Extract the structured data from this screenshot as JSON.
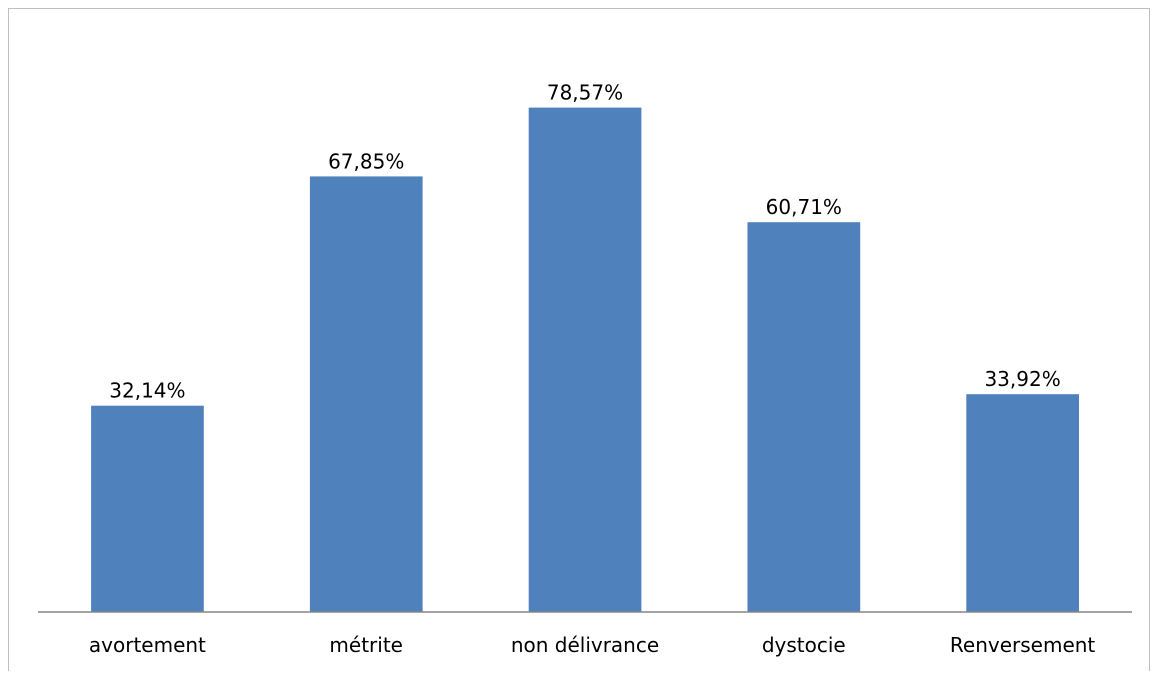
{
  "chart_data": {
    "type": "bar",
    "categories": [
      "avortement",
      "métrite",
      "non délivrance",
      "dystocie",
      "Renversement"
    ],
    "values": [
      32.14,
      67.85,
      78.57,
      60.71,
      33.92
    ],
    "value_labels": [
      "32,14%",
      "67,85%",
      "78,57%",
      "60,71%",
      "33,92%"
    ],
    "title": "",
    "xlabel": "",
    "ylabel": "",
    "ylim": [
      0,
      90
    ],
    "grid": false,
    "legend": "none",
    "bar_color": "#4F81BD",
    "axis_color": "#868686"
  }
}
